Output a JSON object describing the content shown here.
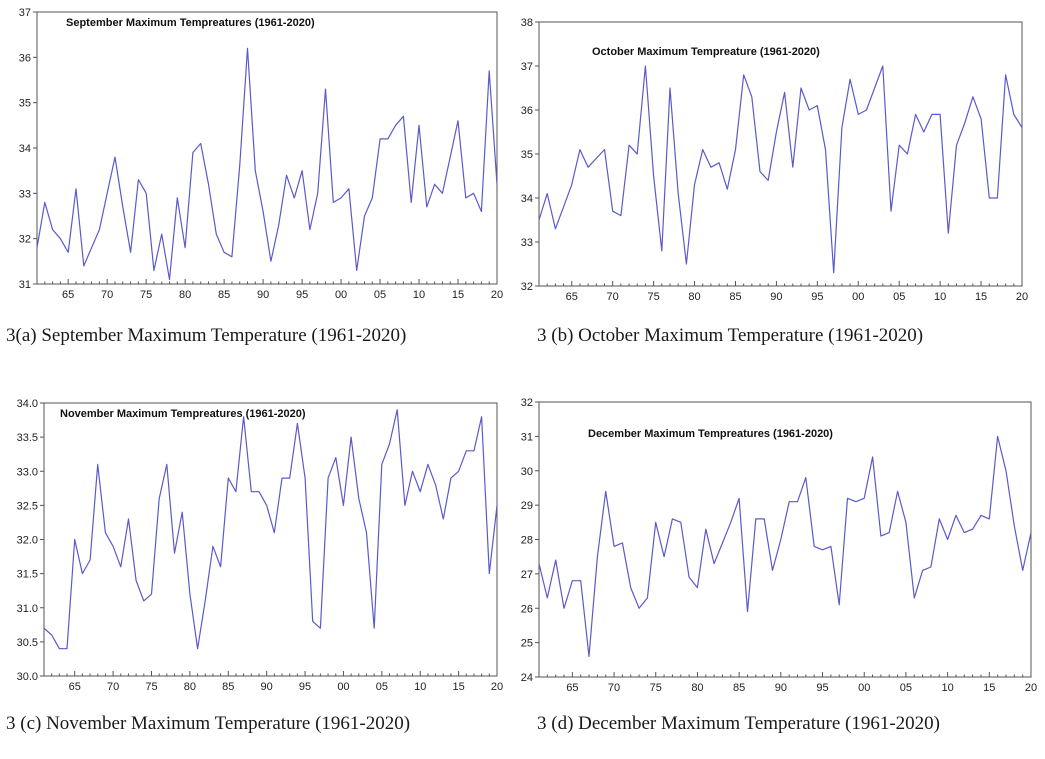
{
  "chart_data": [
    {
      "type": "line",
      "title": "September Maximum Tempreatures (1961-2020)",
      "caption": "3(a) September Maximum Temperature (1961-2020)",
      "ylim": [
        31,
        37
      ],
      "yticks": [
        31,
        32,
        33,
        34,
        35,
        36,
        37
      ],
      "xlim": [
        1961,
        2020
      ],
      "xticks": [
        "65",
        "70",
        "75",
        "80",
        "85",
        "90",
        "95",
        "00",
        "05",
        "10",
        "15",
        "20"
      ],
      "grid": false,
      "color": "#5a5acb",
      "series": [
        {
          "x": [
            1961,
            1962,
            1963,
            1964,
            1965,
            1966,
            1967,
            1968,
            1969,
            1970,
            1971,
            1972,
            1973,
            1974,
            1975,
            1976,
            1977,
            1978,
            1979,
            1980,
            1981,
            1982,
            1983,
            1984,
            1985,
            1986,
            1987,
            1988,
            1989,
            1990,
            1991,
            1992,
            1993,
            1994,
            1995,
            1996,
            1997,
            1998,
            1999,
            2000,
            2001,
            2002,
            2003,
            2004,
            2005,
            2006,
            2007,
            2008,
            2009,
            2010,
            2011,
            2012,
            2013,
            2014,
            2015,
            2016,
            2017,
            2018,
            2019,
            2020
          ],
          "values": [
            31.8,
            32.8,
            32.2,
            32.0,
            31.7,
            33.1,
            31.4,
            31.8,
            32.2,
            33.0,
            33.8,
            32.7,
            31.7,
            33.3,
            33.0,
            31.3,
            32.1,
            31.1,
            32.9,
            31.8,
            33.9,
            34.1,
            33.2,
            32.1,
            31.7,
            31.6,
            33.6,
            36.2,
            33.5,
            32.6,
            31.5,
            32.3,
            33.4,
            32.9,
            33.5,
            32.2,
            33.0,
            35.3,
            32.8,
            32.9,
            33.1,
            31.3,
            32.5,
            32.9,
            34.2,
            34.2,
            34.5,
            34.7,
            32.8,
            34.5,
            32.7,
            33.2,
            33.0,
            33.8,
            34.6,
            32.9,
            33.0,
            32.6,
            35.7,
            33.2
          ]
        }
      ]
    },
    {
      "type": "line",
      "title": "October Maximum Tempreature (1961-2020)",
      "caption": "3 (b) October Maximum Temperature (1961-2020)",
      "ylim": [
        32,
        38
      ],
      "yticks": [
        32,
        33,
        34,
        35,
        36,
        37,
        38
      ],
      "xlim": [
        1961,
        2020
      ],
      "xticks": [
        "65",
        "70",
        "75",
        "80",
        "85",
        "90",
        "95",
        "00",
        "05",
        "10",
        "15",
        "20"
      ],
      "grid": false,
      "color": "#5a5acb",
      "series": [
        {
          "x": [
            1961,
            1962,
            1963,
            1964,
            1965,
            1966,
            1967,
            1968,
            1969,
            1970,
            1971,
            1972,
            1973,
            1974,
            1975,
            1976,
            1977,
            1978,
            1979,
            1980,
            1981,
            1982,
            1983,
            1984,
            1985,
            1986,
            1987,
            1988,
            1989,
            1990,
            1991,
            1992,
            1993,
            1994,
            1995,
            1996,
            1997,
            1998,
            1999,
            2000,
            2001,
            2002,
            2003,
            2004,
            2005,
            2006,
            2007,
            2008,
            2009,
            2010,
            2011,
            2012,
            2013,
            2014,
            2015,
            2016,
            2017,
            2018,
            2019,
            2020
          ],
          "values": [
            33.5,
            34.1,
            33.3,
            33.8,
            34.3,
            35.1,
            34.7,
            34.9,
            35.1,
            33.7,
            33.6,
            35.2,
            35.0,
            37.0,
            34.5,
            32.8,
            36.5,
            34.1,
            32.5,
            34.3,
            35.1,
            34.7,
            34.8,
            34.2,
            35.1,
            36.8,
            36.3,
            34.6,
            34.4,
            35.5,
            36.4,
            34.7,
            36.5,
            36.0,
            36.1,
            35.1,
            32.3,
            35.6,
            36.7,
            35.9,
            36.0,
            36.5,
            37.0,
            33.7,
            35.2,
            35.0,
            35.9,
            35.5,
            35.9,
            35.9,
            33.2,
            35.2,
            35.7,
            36.3,
            35.8,
            34.0,
            34.0,
            36.8,
            35.9,
            35.6
          ]
        }
      ]
    },
    {
      "type": "line",
      "title": "November Maximum Tempreatures (1961-2020)",
      "caption": "3 (c) November Maximum Temperature (1961-2020)",
      "ylim": [
        30.0,
        34.0
      ],
      "yticks": [
        "30.0",
        "30.5",
        "31.0",
        "31.5",
        "32.0",
        "32.5",
        "33.0",
        "33.5",
        "34.0"
      ],
      "xlim": [
        1961,
        2020
      ],
      "xticks": [
        "65",
        "70",
        "75",
        "80",
        "85",
        "90",
        "95",
        "00",
        "05",
        "10",
        "15",
        "20"
      ],
      "grid": false,
      "color": "#5a5acb",
      "series": [
        {
          "x": [
            1961,
            1962,
            1963,
            1964,
            1965,
            1966,
            1967,
            1968,
            1969,
            1970,
            1971,
            1972,
            1973,
            1974,
            1975,
            1976,
            1977,
            1978,
            1979,
            1980,
            1981,
            1982,
            1983,
            1984,
            1985,
            1986,
            1987,
            1988,
            1989,
            1990,
            1991,
            1992,
            1993,
            1994,
            1995,
            1996,
            1997,
            1998,
            1999,
            2000,
            2001,
            2002,
            2003,
            2004,
            2005,
            2006,
            2007,
            2008,
            2009,
            2010,
            2011,
            2012,
            2013,
            2014,
            2015,
            2016,
            2017,
            2018,
            2019,
            2020
          ],
          "values": [
            30.7,
            30.6,
            30.4,
            30.4,
            32.0,
            31.5,
            31.7,
            33.1,
            32.1,
            31.9,
            31.6,
            32.3,
            31.4,
            31.1,
            31.2,
            32.6,
            33.1,
            31.8,
            32.4,
            31.2,
            30.4,
            31.1,
            31.9,
            31.6,
            32.9,
            32.7,
            33.8,
            32.7,
            32.7,
            32.5,
            32.1,
            32.9,
            32.9,
            33.7,
            32.9,
            30.8,
            30.7,
            32.9,
            33.2,
            32.5,
            33.5,
            32.6,
            32.1,
            30.7,
            33.1,
            33.4,
            33.9,
            32.5,
            33.0,
            32.7,
            33.1,
            32.8,
            32.3,
            32.9,
            33.0,
            33.3,
            33.3,
            33.8,
            31.5,
            32.5
          ]
        }
      ]
    },
    {
      "type": "line",
      "title": "December Maximum Tempreatures (1961-2020)",
      "caption": "3 (d) December Maximum Temperature (1961-2020)",
      "ylim": [
        24,
        32
      ],
      "yticks": [
        24,
        25,
        26,
        27,
        28,
        29,
        30,
        31,
        32
      ],
      "xlim": [
        1961,
        2020
      ],
      "xticks": [
        "65",
        "70",
        "75",
        "80",
        "85",
        "90",
        "95",
        "00",
        "05",
        "10",
        "15",
        "20"
      ],
      "grid": false,
      "color": "#5a5acb",
      "series": [
        {
          "x": [
            1961,
            1962,
            1963,
            1964,
            1965,
            1966,
            1967,
            1968,
            1969,
            1970,
            1971,
            1972,
            1973,
            1974,
            1975,
            1976,
            1977,
            1978,
            1979,
            1980,
            1981,
            1982,
            1983,
            1984,
            1985,
            1986,
            1987,
            1988,
            1989,
            1990,
            1991,
            1992,
            1993,
            1994,
            1995,
            1996,
            1997,
            1998,
            1999,
            2000,
            2001,
            2002,
            2003,
            2004,
            2005,
            2006,
            2007,
            2008,
            2009,
            2010,
            2011,
            2012,
            2013,
            2014,
            2015,
            2016,
            2017,
            2018,
            2019,
            2020
          ],
          "values": [
            27.3,
            26.3,
            27.4,
            26.0,
            26.8,
            26.8,
            24.6,
            27.5,
            29.4,
            27.8,
            27.9,
            26.6,
            26.0,
            26.3,
            28.5,
            27.5,
            28.6,
            28.5,
            26.9,
            26.6,
            28.3,
            27.3,
            27.9,
            28.5,
            29.2,
            25.9,
            28.6,
            28.6,
            27.1,
            28.0,
            29.1,
            29.1,
            29.8,
            27.8,
            27.7,
            27.8,
            26.1,
            29.2,
            29.1,
            29.2,
            30.4,
            28.1,
            28.2,
            29.4,
            28.5,
            26.3,
            27.1,
            27.2,
            28.6,
            28.0,
            28.7,
            28.2,
            28.3,
            28.7,
            28.6,
            31.0,
            30.0,
            28.4,
            27.1,
            28.2
          ]
        }
      ]
    }
  ]
}
